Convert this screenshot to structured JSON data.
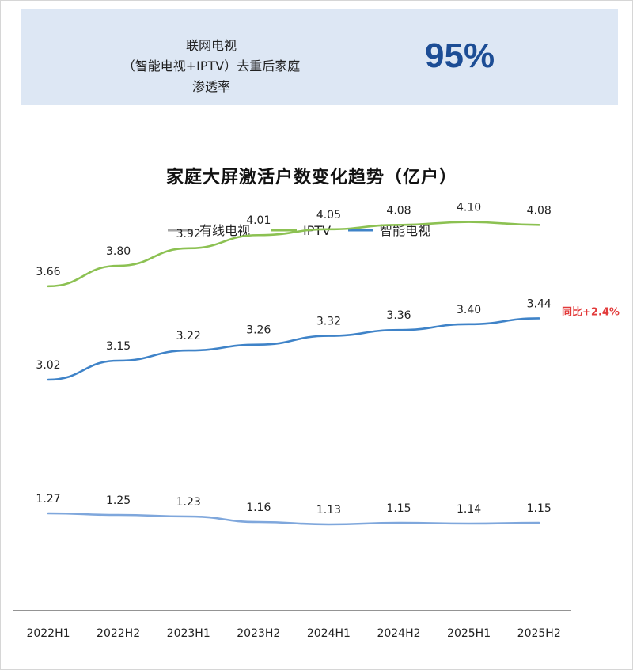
{
  "banner": {
    "line1": "联网电视",
    "line2": "（智能电视+IPTV）去重后家庭渗透率",
    "value": "95%"
  },
  "colors": {
    "banner_bg": "#dde7f4",
    "value": "#1c4d95",
    "cable": "#a6a6a6",
    "iptv": "#8cc152",
    "smart": "#3f83c8",
    "cable_line": "#7fa7dc",
    "yoy": "#e23a3a"
  },
  "chart_data": {
    "type": "line",
    "title": "家庭大屏激活户数变化趋势（亿户）",
    "categories": [
      "2022H1",
      "2022H2",
      "2023H1",
      "2023H2",
      "2024H1",
      "2024H2",
      "2025H1",
      "2025H2"
    ],
    "series": [
      {
        "name": "有线电视",
        "key": "cable",
        "values": [
          1.27,
          1.25,
          1.23,
          1.16,
          1.13,
          1.15,
          1.14,
          1.15
        ],
        "labels": [
          "1.27",
          "1.25",
          "1.23",
          "1.16",
          "1.13",
          "1.15",
          "1.14",
          "1.15"
        ]
      },
      {
        "name": "IPTV",
        "key": "iptv",
        "values": [
          3.66,
          3.8,
          3.92,
          4.01,
          4.05,
          4.08,
          4.1,
          4.08
        ],
        "labels": [
          "3.66",
          "3.80",
          "3.92",
          "4.01",
          "4.05",
          "4.08",
          "4.10",
          "4.08"
        ]
      },
      {
        "name": "智能电视",
        "key": "smart",
        "values": [
          3.02,
          3.15,
          3.22,
          3.26,
          3.32,
          3.36,
          3.4,
          3.44
        ],
        "labels": [
          "3.02",
          "3.15",
          "3.22",
          "3.26",
          "3.32",
          "3.36",
          "3.40",
          "3.44"
        ]
      }
    ],
    "annotation": "同比+2.4%",
    "legend": "top"
  }
}
